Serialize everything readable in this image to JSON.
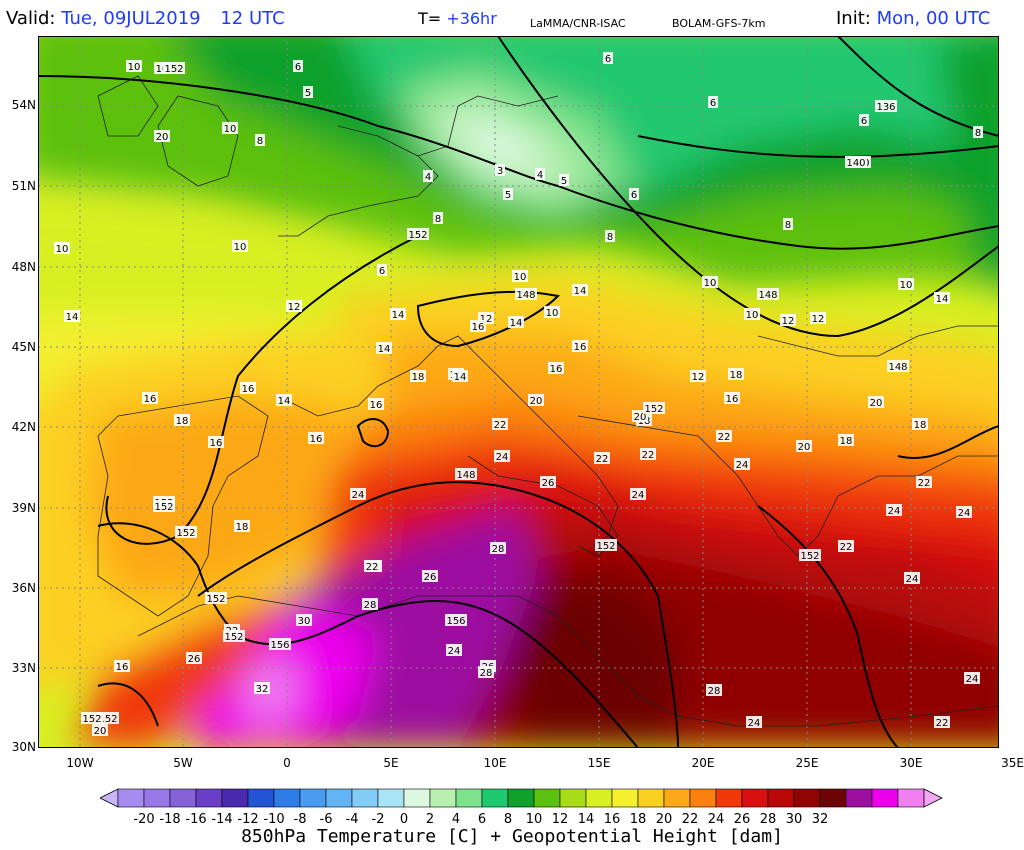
{
  "header": {
    "valid_label": "Valid:",
    "valid_value": "Tue, 09JUL2019",
    "valid_time": "12 UTC",
    "forecast_label": "T=",
    "forecast_value": "+36hr",
    "institution": "LaMMA/CNR-ISAC",
    "model": "BOLAM-GFS-7km",
    "init_label": "Init:",
    "init_value": "Mon, 00 UTC"
  },
  "map": {
    "lat_ticks": [
      "54N",
      "51N",
      "48N",
      "45N",
      "42N",
      "39N",
      "36N",
      "33N",
      "30N"
    ],
    "lon_ticks": [
      "10W",
      "5W",
      "0",
      "5E",
      "10E",
      "15E",
      "20E",
      "25E",
      "30E",
      "35E"
    ],
    "temperature_labels": [
      "10",
      "10",
      "6",
      "5",
      "6",
      "6",
      "6",
      "8",
      "20",
      "10",
      "8",
      "4",
      "3",
      "4",
      "5",
      "5",
      "6",
      "8",
      "8",
      "140",
      "10",
      "10",
      "6",
      "8",
      "10",
      "12",
      "12",
      "14",
      "10",
      "14",
      "16",
      "14",
      "10",
      "10",
      "10",
      "14",
      "14",
      "16",
      "14",
      "16",
      "16",
      "18",
      "16",
      "16",
      "14",
      "12",
      "12",
      "18",
      "16",
      "18",
      "16",
      "14",
      "16",
      "20",
      "18",
      "12",
      "16",
      "22",
      "24",
      "22",
      "20",
      "22",
      "20",
      "18",
      "20",
      "26",
      "24",
      "22",
      "24",
      "24",
      "18",
      "18",
      "22",
      "24",
      "28",
      "26",
      "24",
      "26",
      "28",
      "30",
      "26",
      "22",
      "22",
      "24",
      "24",
      "24",
      "28",
      "28",
      "24",
      "22",
      "22",
      "32",
      "20",
      "16",
      "24"
    ],
    "height_labels": [
      "152",
      "136",
      "140",
      "152",
      "148",
      "148",
      "148",
      "152",
      "148",
      "152",
      "152",
      "152",
      "156",
      "156",
      "152",
      "152",
      "152",
      "152",
      "152",
      "152"
    ]
  },
  "colorbar": {
    "labels": [
      "-20",
      "-18",
      "-16",
      "-14",
      "-12",
      "-10",
      "-8",
      "-6",
      "-4",
      "-2",
      "0",
      "2",
      "4",
      "6",
      "8",
      "10",
      "12",
      "14",
      "16",
      "18",
      "20",
      "22",
      "24",
      "26",
      "28",
      "30",
      "32"
    ],
    "colors": [
      "#a78cf0",
      "#9878e8",
      "#8662d8",
      "#6a3fc8",
      "#4b2ab0",
      "#2254d4",
      "#2f7ce6",
      "#4a9cf0",
      "#62b4f4",
      "#82ccf6",
      "#a8e4f6",
      "#dcf8e0",
      "#b8f0b0",
      "#7ee28c",
      "#20c870",
      "#10a02c",
      "#5cc010",
      "#a8dc18",
      "#d8f024",
      "#f4f030",
      "#fcd020",
      "#fca818",
      "#fc8010",
      "#f03808",
      "#d81010",
      "#b80808",
      "#900404",
      "#6c0404",
      "#9c10a0",
      "#ec00ec",
      "#f080f0"
    ]
  },
  "footer": {
    "title": "850hPa Temperature [C] + Geopotential Height [dam]"
  }
}
